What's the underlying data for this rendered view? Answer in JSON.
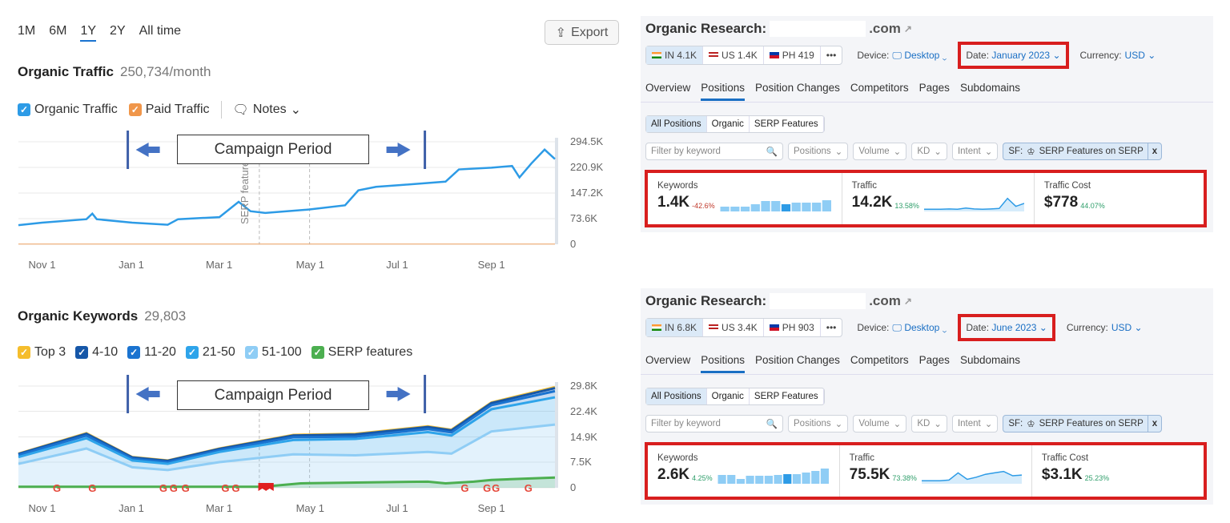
{
  "left": {
    "periods": [
      "1M",
      "6M",
      "1Y",
      "2Y",
      "All time"
    ],
    "selected_period": "1Y",
    "export_label": "Export",
    "traffic": {
      "title": "Organic Traffic",
      "value": "250,734/month",
      "legend": [
        {
          "label": "Organic Traffic",
          "color": "#2d9be6"
        },
        {
          "label": "Paid Traffic",
          "color": "#f0964a"
        }
      ],
      "notes_label": "Notes",
      "serp_note": "SERP features"
    },
    "keywords": {
      "title": "Organic Keywords",
      "value": "29,803",
      "legend": [
        {
          "label": "Top 3",
          "color": "#f5bd2c"
        },
        {
          "label": "4-10",
          "color": "#1657a8"
        },
        {
          "label": "11-20",
          "color": "#1a73d0"
        },
        {
          "label": "21-50",
          "color": "#2ea4ea"
        },
        {
          "label": "51-100",
          "color": "#8fcdf5"
        },
        {
          "label": "SERP features",
          "color": "#4caf50"
        }
      ]
    },
    "campaign_label": "Campaign Period"
  },
  "chart_data": [
    {
      "type": "line",
      "title": "Organic Traffic",
      "x_range": [
        "2022-10-16",
        "2023-10-14"
      ],
      "ylim": [
        0,
        294500
      ],
      "y_ticks": [
        "294.5K",
        "220.9K",
        "147.2K",
        "73.6K",
        "0"
      ],
      "y_tick_values": [
        294500,
        220900,
        147200,
        73600,
        0
      ],
      "x_ticks": [
        {
          "label": "Nov 1",
          "date": "2022-11-01"
        },
        {
          "label": "Jan 1",
          "date": "2023-01-01"
        },
        {
          "label": "Mar 1",
          "date": "2023-03-01"
        },
        {
          "label": "May 1",
          "date": "2023-05-01"
        },
        {
          "label": "Jul 1",
          "date": "2023-07-01"
        },
        {
          "label": "Sep 1",
          "date": "2023-09-01"
        }
      ],
      "grid": true,
      "campaign": [
        "2022-12-29",
        "2023-07-18"
      ],
      "note_lines": [
        "2023-03-28",
        "2023-05-01"
      ],
      "series": [
        {
          "name": "Organic Traffic",
          "color": "#2d9be6",
          "x": [
            "2022-10-16",
            "2022-11-01",
            "2022-12-01",
            "2022-12-05",
            "2022-12-08",
            "2023-01-01",
            "2023-01-25",
            "2023-02-01",
            "2023-03-01",
            "2023-03-14",
            "2023-03-22",
            "2023-04-01",
            "2023-05-01",
            "2023-05-25",
            "2023-06-03",
            "2023-06-15",
            "2023-07-01",
            "2023-08-01",
            "2023-08-10",
            "2023-09-01",
            "2023-09-15",
            "2023-09-20",
            "2023-09-28",
            "2023-10-07",
            "2023-10-14"
          ],
          "y": [
            55000,
            62000,
            72000,
            88000,
            72000,
            62000,
            56000,
            72000,
            78000,
            122000,
            95000,
            90000,
            100000,
            112000,
            155000,
            165000,
            170000,
            180000,
            215000,
            220000,
            225000,
            192000,
            232000,
            272000,
            245000
          ]
        },
        {
          "name": "Paid Traffic",
          "color": "#f0964a",
          "x": [
            "2022-10-16",
            "2023-10-14"
          ],
          "y": [
            1000,
            1000
          ]
        }
      ]
    },
    {
      "type": "area",
      "title": "Organic Keywords",
      "stacked": true,
      "x_range": [
        "2022-10-16",
        "2023-10-14"
      ],
      "ylim": [
        0,
        29800
      ],
      "y_ticks": [
        "29.8K",
        "22.4K",
        "14.9K",
        "7.5K",
        "0"
      ],
      "y_tick_values": [
        29800,
        22400,
        14900,
        7500,
        0
      ],
      "x_ticks": [
        {
          "label": "Nov 1",
          "date": "2022-11-01"
        },
        {
          "label": "Jan 1",
          "date": "2023-01-01"
        },
        {
          "label": "Mar 1",
          "date": "2023-03-01"
        },
        {
          "label": "May 1",
          "date": "2023-05-01"
        },
        {
          "label": "Jul 1",
          "date": "2023-07-01"
        },
        {
          "label": "Sep 1",
          "date": "2023-09-01"
        }
      ],
      "grid": true,
      "x": [
        "2022-10-16",
        "2022-12-01",
        "2023-01-01",
        "2023-01-25",
        "2023-03-01",
        "2023-04-20",
        "2023-06-01",
        "2023-07-20",
        "2023-08-05",
        "2023-09-01",
        "2023-10-14"
      ],
      "series": [
        {
          "name": "51-100",
          "color": "#8fcdf5",
          "values": [
            7000,
            11500,
            6000,
            5200,
            7500,
            9800,
            9500,
            10500,
            10000,
            16500,
            18500
          ]
        },
        {
          "name": "21-50",
          "color": "#2ea4ea",
          "values": [
            2000,
            3000,
            2000,
            1800,
            3000,
            4200,
            4800,
            5800,
            5300,
            6500,
            8000
          ]
        },
        {
          "name": "11-20",
          "color": "#1a73d0",
          "values": [
            600,
            800,
            500,
            500,
            500,
            800,
            700,
            900,
            900,
            1200,
            1800
          ]
        },
        {
          "name": "4-10",
          "color": "#1657a8",
          "values": [
            300,
            500,
            400,
            400,
            400,
            500,
            600,
            600,
            600,
            600,
            900
          ]
        },
        {
          "name": "Top 3",
          "color": "#f5bd2c",
          "values": [
            100,
            200,
            100,
            100,
            100,
            200,
            200,
            200,
            200,
            200,
            300
          ]
        }
      ],
      "serp_features": {
        "name": "SERP features",
        "color": "#4caf50",
        "x": [
          "2022-10-16",
          "2023-03-30",
          "2023-04-25",
          "2023-07-20",
          "2023-08-01",
          "2023-08-20",
          "2023-09-01",
          "2023-10-14"
        ],
        "values": [
          300,
          300,
          1300,
          1800,
          1300,
          1800,
          2300,
          3000
        ]
      },
      "google_updates": [
        "2022-11-11",
        "2022-12-05",
        "2023-01-22",
        "2023-01-29",
        "2023-02-06",
        "2023-03-05",
        "2023-03-12",
        "2023-08-14",
        "2023-08-29",
        "2023-09-04",
        "2023-09-26"
      ],
      "notes": [
        "2023-03-30",
        "2023-04-04"
      ],
      "campaign": [
        "2022-12-29",
        "2023-07-18"
      ],
      "note_lines": [
        "2023-03-28",
        "2023-05-01"
      ]
    }
  ],
  "panels": [
    {
      "title": "Organic Research:",
      "domain_suffix": ".com",
      "countries": [
        {
          "code": "IN",
          "value": "4.1K"
        },
        {
          "code": "US",
          "value": "1.4K"
        },
        {
          "code": "PH",
          "value": "419"
        }
      ],
      "more": "•••",
      "device_label": "Device:",
      "device": "Desktop",
      "date_label": "Date:",
      "date": "January 2023",
      "currency_label": "Currency:",
      "currency": "USD",
      "tabs": [
        "Overview",
        "Positions",
        "Position Changes",
        "Competitors",
        "Pages",
        "Subdomains"
      ],
      "active_tab": "Positions",
      "position_tabs": [
        "All Positions",
        "Organic",
        "SERP Features"
      ],
      "filter_placeholder": "Filter by keyword",
      "filters": [
        "Positions",
        "Volume",
        "KD",
        "Intent"
      ],
      "sf_label": "SF:",
      "sf_value": "SERP Features on SERP",
      "sf_close": "x",
      "metrics": [
        {
          "label": "Keywords",
          "value": "1.4K",
          "change": "-42.6%",
          "trend": "down",
          "bars": [
            0.3,
            0.3,
            0.3,
            0.45,
            0.65,
            0.65,
            0.45,
            0.55,
            0.55,
            0.55,
            0.7
          ],
          "highlight_bar": 6
        },
        {
          "label": "Traffic",
          "value": "14.2K",
          "change": "13.58%",
          "trend": "up",
          "spark": [
            0.1,
            0.1,
            0.1,
            0.12,
            0.1,
            0.18,
            0.12,
            0.1,
            0.12,
            0.15,
            0.85,
            0.3,
            0.5
          ]
        },
        {
          "label": "Traffic Cost",
          "value": "$778",
          "change": "44.07%",
          "trend": "up"
        }
      ]
    },
    {
      "title": "Organic Research:",
      "domain_suffix": ".com",
      "countries": [
        {
          "code": "IN",
          "value": "6.8K"
        },
        {
          "code": "US",
          "value": "3.4K"
        },
        {
          "code": "PH",
          "value": "903"
        }
      ],
      "more": "•••",
      "device_label": "Device:",
      "device": "Desktop",
      "date_label": "Date:",
      "date": "June 2023",
      "currency_label": "Currency:",
      "currency": "USD",
      "tabs": [
        "Overview",
        "Positions",
        "Position Changes",
        "Competitors",
        "Pages",
        "Subdomains"
      ],
      "active_tab": "Positions",
      "position_tabs": [
        "All Positions",
        "Organic",
        "SERP Features"
      ],
      "filter_placeholder": "Filter by keyword",
      "filters": [
        "Positions",
        "Volume",
        "KD",
        "Intent"
      ],
      "sf_label": "SF:",
      "sf_value": "SERP Features on SERP",
      "sf_close": "x",
      "metrics": [
        {
          "label": "Keywords",
          "value": "2.6K",
          "change": "4.25%",
          "trend": "up",
          "bars": [
            0.55,
            0.55,
            0.3,
            0.5,
            0.5,
            0.5,
            0.55,
            0.6,
            0.6,
            0.7,
            0.8,
            0.95
          ],
          "highlight_bar": 7
        },
        {
          "label": "Traffic",
          "value": "75.5K",
          "change": "73.38%",
          "trend": "up",
          "spark": [
            0.15,
            0.15,
            0.15,
            0.2,
            0.7,
            0.25,
            0.4,
            0.6,
            0.7,
            0.8,
            0.5,
            0.55
          ]
        },
        {
          "label": "Traffic Cost",
          "value": "$3.1K",
          "change": "25.23%",
          "trend": "up"
        }
      ]
    }
  ]
}
